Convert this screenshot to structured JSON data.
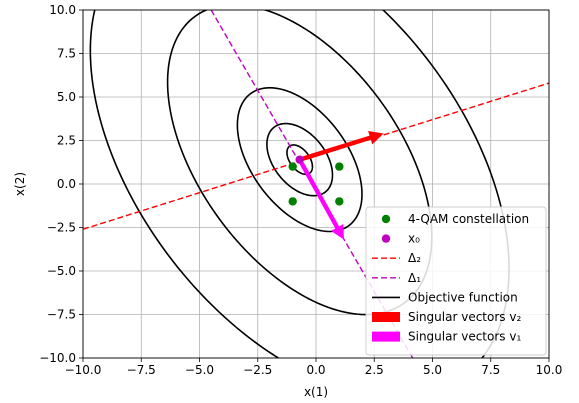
{
  "chart_data": {
    "type": "line",
    "title": "",
    "xlabel": "x(1)",
    "ylabel": "x(2)",
    "xlim": [
      -10,
      10
    ],
    "ylim": [
      -10,
      10
    ],
    "xticks": [
      -10,
      -7.5,
      -5,
      -2.5,
      0,
      2.5,
      5,
      7.5,
      10
    ],
    "yticks": [
      -10,
      -7.5,
      -5,
      -2.5,
      0,
      2.5,
      5,
      7.5,
      10
    ],
    "xtick_labels": [
      "−10.0",
      "−7.5",
      "−5.0",
      "−2.5",
      "0.0",
      "2.5",
      "5.0",
      "7.5",
      "10.0"
    ],
    "ytick_labels": [
      "−10.0",
      "−7.5",
      "−5.0",
      "−2.5",
      "0.0",
      "2.5",
      "5.0",
      "7.5",
      "10.0"
    ],
    "grid": true,
    "legend_position": "bottom-right",
    "constellation": {
      "label": "4-QAM constellation",
      "color": "#008000",
      "points": [
        [
          -1,
          1
        ],
        [
          1,
          1
        ],
        [
          -1,
          -1
        ],
        [
          1,
          -1
        ]
      ]
    },
    "x0": {
      "label": "x₀",
      "color": "#bf00bf",
      "point": [
        -0.7,
        1.4
      ]
    },
    "delta2": {
      "label": "Δ₂",
      "color": "#ff0000",
      "points": [
        [
          -10,
          -2.6
        ],
        [
          10,
          5.8
        ]
      ]
    },
    "delta1": {
      "label": "Δ₁",
      "color": "#bf00bf",
      "points": [
        [
          -4.5,
          10.0
        ],
        [
          4.15,
          -10.0
        ]
      ]
    },
    "objective": {
      "label": "Objective function",
      "color": "#000000",
      "center": [
        -0.7,
        1.4
      ],
      "major_axis_direction": [
        -0.4,
        0.92
      ],
      "semi_axes": [
        [
          0.45,
          0.9
        ],
        [
          1.2,
          2.2
        ],
        [
          2.2,
          4.4
        ],
        [
          4.6,
          9.5
        ],
        [
          7.5,
          14.5
        ]
      ]
    },
    "singular_v2": {
      "label": "Singular vectors v₂",
      "color": "#ff0000",
      "from": [
        -0.7,
        1.4
      ],
      "to": [
        2.9,
        2.9
      ]
    },
    "singular_v1": {
      "label": "Singular vectors v₁",
      "color": "#ff00ff",
      "from": [
        -0.7,
        1.4
      ],
      "to": [
        1.2,
        -3.2
      ]
    }
  }
}
